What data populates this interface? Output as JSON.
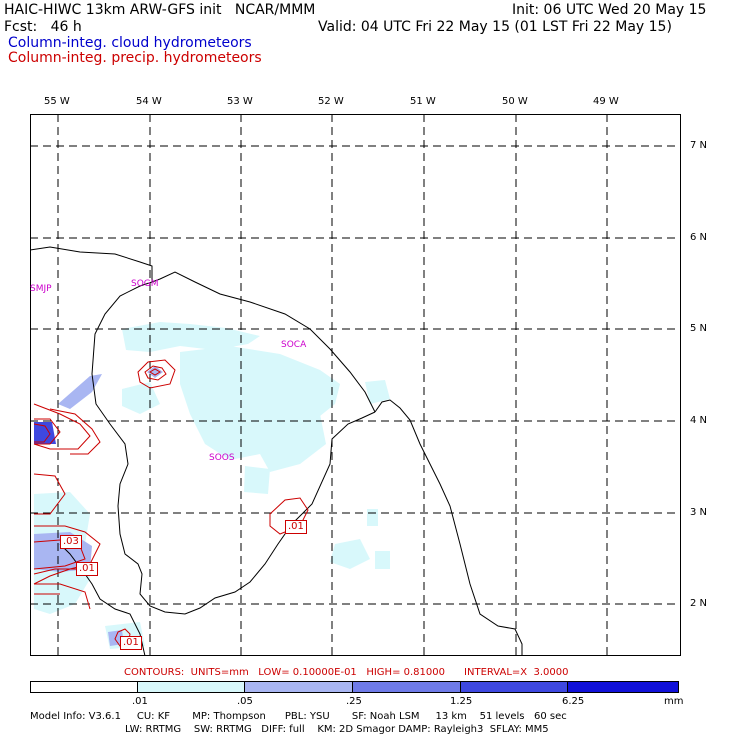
{
  "header": {
    "model_line": "HAIC-HIWC 13km ARW-GFS init   NCAR/MMM",
    "init_line": "Init: 06 UTC Wed 20 May 15",
    "fcst_line": "Fcst:   46 h",
    "valid_line": "Valid: 04 UTC Fri 22 May 15 (01 LST Fri 22 May 15)",
    "field1": "Column-integ. cloud hydrometeors",
    "field2": "Column-integ. precip. hydrometeors"
  },
  "lon_labels": [
    "55 W",
    "54 W",
    "53 W",
    "52 W",
    "51 W",
    "50 W",
    "49 W"
  ],
  "lat_labels": [
    "7 N",
    "6 N",
    "5 N",
    "4 N",
    "3 N",
    "2 N"
  ],
  "stations": [
    "SMJP",
    "SOGM",
    "SOCA",
    "SOOS"
  ],
  "contour_labels": [
    ".01",
    ".03",
    ".01",
    ".01"
  ],
  "contours_info": "CONTOURS:  UNITS=mm   LOW= 0.10000E-01   HIGH= 0.81000      INTERVAL=X  3.0000",
  "legend": {
    "ticks": [
      ".01",
      ".05",
      ".25",
      "1.25",
      "6.25",
      "mm"
    ],
    "colors": [
      "#ffffff",
      "#d8f8fb",
      "#a9b6f2",
      "#6f7be8",
      "#3e48e0",
      "#1010d8"
    ]
  },
  "model_info": {
    "line1": "Model Info: V3.6.1     CU: KF       MP: Thompson      PBL: YSU       SF: Noah LSM     13 km    51 levels   60 sec",
    "line2": "LW: RRTMG    SW: RRTMG   DIFF: full    KM: 2D Smagor DAMP: Rayleigh3  SFLAY: MM5"
  },
  "colors": {
    "cloud_shade": "#d8f8fb",
    "precip_light": "#a9b6f2",
    "precip_mid": "#6f7be8",
    "contour": "#cc0000",
    "station": "#cc00cc"
  }
}
